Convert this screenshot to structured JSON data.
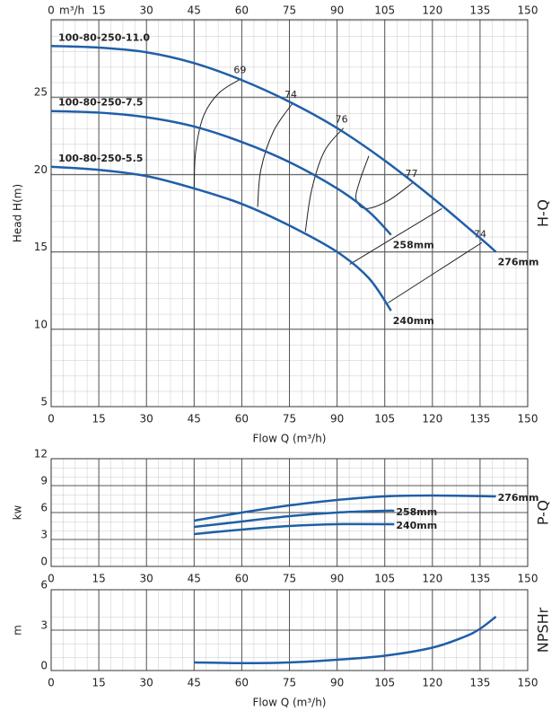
{
  "chart_data": [
    {
      "type": "line",
      "x_label": "Flow Q (m³/h)",
      "x_unit": "m³/h",
      "y_label": "Head H(m)",
      "side_label": "H-Q",
      "xlim": [
        0,
        150
      ],
      "xticks": [
        0,
        15,
        30,
        45,
        60,
        75,
        90,
        105,
        120,
        135,
        150
      ],
      "ylim": [
        5,
        30
      ],
      "yticks": [
        5,
        10,
        15,
        20,
        25
      ],
      "grid": true,
      "color": "#1f5fa8",
      "series": [
        {
          "name": "276mm",
          "model": "100-80-250-11.0",
          "x": [
            0,
            15,
            30,
            45,
            60,
            75,
            90,
            105,
            120,
            135,
            140
          ],
          "values": [
            28.3,
            28.2,
            27.9,
            27.2,
            26.1,
            24.7,
            23.0,
            20.9,
            18.5,
            15.9,
            15.0
          ]
        },
        {
          "name": "258mm",
          "model": "100-80-250-7.5",
          "x": [
            0,
            15,
            30,
            45,
            60,
            75,
            90,
            100,
            107
          ],
          "values": [
            24.1,
            24.0,
            23.7,
            23.1,
            22.1,
            20.8,
            19.1,
            17.6,
            16.1
          ]
        },
        {
          "name": "240mm",
          "model": "100-80-250-5.5",
          "x": [
            0,
            15,
            30,
            45,
            60,
            75,
            90,
            100,
            107
          ],
          "values": [
            20.5,
            20.3,
            19.9,
            19.1,
            18.1,
            16.7,
            15.0,
            13.3,
            11.2
          ]
        }
      ],
      "efficiency_lines": [
        {
          "label": "69",
          "x": [
            45,
            45.5,
            48,
            53,
            60
          ],
          "values": [
            19.1,
            21.5,
            23.8,
            25.3,
            26.2
          ]
        },
        {
          "label": "74",
          "x": [
            65,
            66,
            70,
            76
          ],
          "values": [
            17.9,
            20.3,
            22.8,
            24.6
          ]
        },
        {
          "label": "76",
          "x": [
            80,
            82,
            86,
            92
          ],
          "values": [
            16.3,
            19.0,
            21.5,
            23.0
          ]
        },
        {
          "label": "77",
          "x": [
            100,
            97,
            96,
            99,
            106,
            114
          ],
          "values": [
            21.2,
            19.5,
            18.4,
            17.8,
            18.3,
            19.5
          ]
        },
        {
          "label": null,
          "x": [
            94,
            123
          ],
          "values": [
            14.2,
            17.8
          ]
        },
        {
          "label": "74",
          "x": [
            106,
            135.6
          ],
          "values": [
            11.7,
            15.6
          ]
        }
      ]
    },
    {
      "type": "line",
      "y_label": "kw",
      "side_label": "P-Q",
      "xlim": [
        0,
        150
      ],
      "xticks": [
        0,
        15,
        30,
        45,
        60,
        75,
        90,
        105,
        120,
        135,
        150
      ],
      "ylim": [
        0,
        12
      ],
      "yticks": [
        0,
        3,
        6,
        9,
        12
      ],
      "grid": true,
      "color": "#1f5fa8",
      "series": [
        {
          "name": "276mm",
          "x": [
            45,
            60,
            75,
            90,
            105,
            120,
            140
          ],
          "values": [
            5.1,
            6.0,
            6.8,
            7.4,
            7.8,
            7.9,
            7.8
          ]
        },
        {
          "name": "258mm",
          "x": [
            45,
            60,
            75,
            90,
            105,
            108
          ],
          "values": [
            4.4,
            5.0,
            5.6,
            6.0,
            6.2,
            6.2
          ]
        },
        {
          "name": "240mm",
          "x": [
            45,
            60,
            75,
            90,
            108
          ],
          "values": [
            3.6,
            4.1,
            4.5,
            4.7,
            4.7
          ]
        }
      ]
    },
    {
      "type": "line",
      "x_label": "Flow Q (m³/h)",
      "y_label": "m",
      "side_label": "NPSHr",
      "xlim": [
        0,
        150
      ],
      "xticks": [
        0,
        15,
        30,
        45,
        60,
        75,
        90,
        105,
        120,
        135,
        150
      ],
      "ylim": [
        0,
        6
      ],
      "yticks": [
        0,
        3,
        6
      ],
      "grid": true,
      "color": "#1f5fa8",
      "series": [
        {
          "x": [
            45,
            60,
            75,
            90,
            105,
            120,
            130,
            135,
            140
          ],
          "values": [
            0.6,
            0.55,
            0.6,
            0.8,
            1.1,
            1.7,
            2.5,
            3.1,
            4.0
          ]
        }
      ]
    }
  ]
}
